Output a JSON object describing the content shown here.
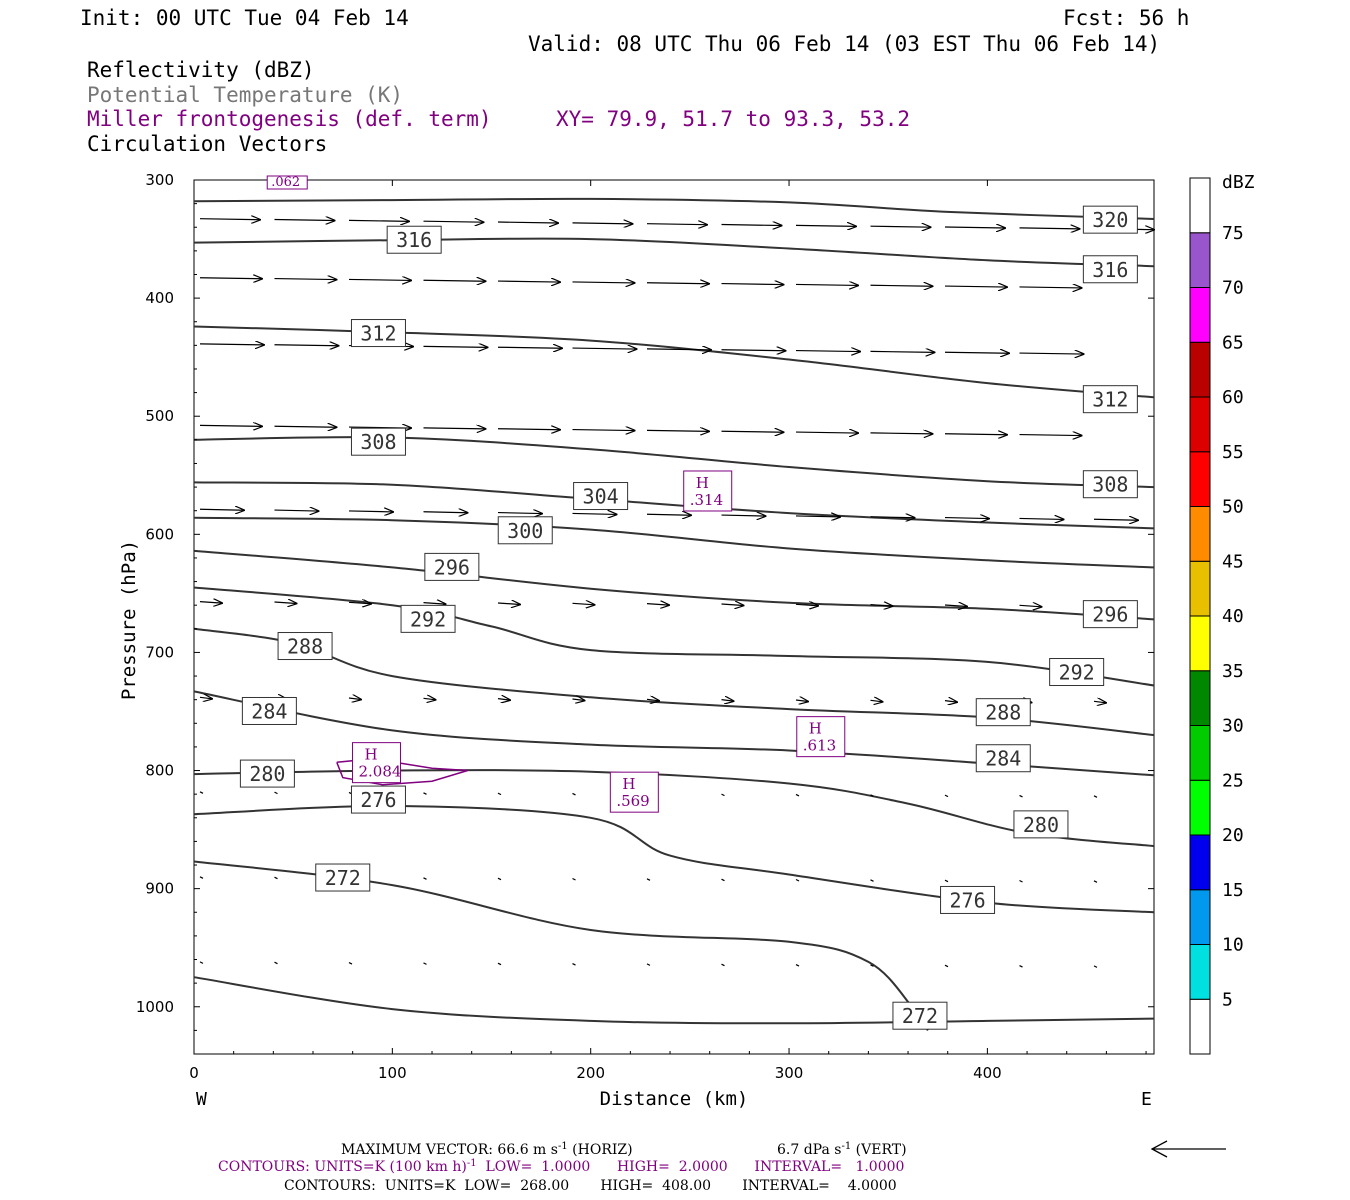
{
  "header": {
    "init": "Init: 00 UTC Tue 04 Feb 14",
    "fcst": "Fcst:   56 h",
    "valid": "Valid: 08 UTC Thu 06 Feb 14 (03 EST Thu 06 Feb 14)",
    "fields": [
      {
        "text": "Reflectivity (dBZ)",
        "color": "#000000"
      },
      {
        "text": "Potential Temperature (K)",
        "color": "#777777"
      },
      {
        "text": "Miller frontogenesis (def. term)",
        "color": "#800080"
      },
      {
        "text": "Circulation Vectors",
        "color": "#000000"
      }
    ],
    "xy": "XY=  79.9, 51.7 to  93.3, 53.2"
  },
  "axes": {
    "xlabel": "Distance (km)",
    "ylabel": "Pressure (hPa)",
    "west": "W",
    "east": "E"
  },
  "colorbar": {
    "unit": "dBZ",
    "levels": [
      5,
      10,
      15,
      20,
      25,
      30,
      35,
      40,
      45,
      50,
      55,
      60,
      65,
      70,
      75
    ],
    "colors": [
      "#00e0e0",
      "#0099ee",
      "#0000ee",
      "#00ff00",
      "#00cc00",
      "#008800",
      "#ffff00",
      "#e8c000",
      "#ff8c00",
      "#ff0000",
      "#dd0000",
      "#bb0000",
      "#ff00ff",
      "#9955cc",
      "#ffffff"
    ]
  },
  "footer": {
    "max_vector_left": "MAXIMUM VECTOR:  66.6 m s",
    "max_vector_left_sup": "-1",
    "max_vector_left_tail": " (HORIZ)",
    "max_vector_right": "6.7 dPa s",
    "max_vector_right_sup": "-1",
    "max_vector_right_tail": " (VERT)",
    "contours_purple": "CONTOURS:  UNITS=K (100 km h)",
    "contours_purple_sup": "-1",
    "contours_purple_tail": "  LOW=  1.0000      HIGH=  2.0000      INTERVAL=   1.0000",
    "contours_black": "CONTOURS:  UNITS=K  LOW=  268.00       HIGH=  408.00       INTERVAL=    4.0000"
  },
  "chart_data": {
    "type": "cross-section",
    "x_unit": "km",
    "y_unit": "hPa",
    "xlim": [
      0,
      484
    ],
    "ylim": [
      1040,
      300
    ],
    "x_ticks": [
      0,
      100,
      200,
      300,
      400
    ],
    "y_ticks": [
      300,
      400,
      500,
      600,
      700,
      800,
      900,
      1000
    ],
    "theta_contours": [
      {
        "value": 320,
        "points": [
          [
            0,
            318
          ],
          [
            100,
            317
          ],
          [
            200,
            316
          ],
          [
            300,
            319
          ],
          [
            380,
            327
          ],
          [
            484,
            333
          ]
        ],
        "labels": [
          [
            462,
            334
          ]
        ]
      },
      {
        "value": 316,
        "points": [
          [
            0,
            353
          ],
          [
            100,
            351
          ],
          [
            200,
            350
          ],
          [
            300,
            358
          ],
          [
            400,
            368
          ],
          [
            484,
            373
          ]
        ],
        "labels": [
          [
            111,
            351
          ],
          [
            462,
            376
          ]
        ]
      },
      {
        "value": 312,
        "points": [
          [
            0,
            424
          ],
          [
            100,
            429
          ],
          [
            200,
            436
          ],
          [
            300,
            452
          ],
          [
            400,
            472
          ],
          [
            484,
            484
          ]
        ],
        "labels": [
          [
            93,
            430
          ],
          [
            462,
            486
          ]
        ]
      },
      {
        "value": 308,
        "points": [
          [
            0,
            520
          ],
          [
            100,
            518
          ],
          [
            200,
            528
          ],
          [
            300,
            543
          ],
          [
            400,
            555
          ],
          [
            484,
            560
          ]
        ],
        "labels": [
          [
            93,
            522
          ],
          [
            462,
            558
          ]
        ]
      },
      {
        "value": 304,
        "points": [
          [
            0,
            556
          ],
          [
            100,
            558
          ],
          [
            200,
            570
          ],
          [
            300,
            582
          ],
          [
            400,
            590
          ],
          [
            484,
            595
          ]
        ],
        "labels": [
          [
            205,
            568
          ]
        ]
      },
      {
        "value": 300,
        "points": [
          [
            0,
            586
          ],
          [
            100,
            588
          ],
          [
            200,
            596
          ],
          [
            300,
            612
          ],
          [
            400,
            622
          ],
          [
            484,
            628
          ]
        ],
        "labels": [
          [
            167,
            597
          ]
        ]
      },
      {
        "value": 296,
        "points": [
          [
            0,
            614
          ],
          [
            100,
            628
          ],
          [
            200,
            646
          ],
          [
            300,
            658
          ],
          [
            400,
            663
          ],
          [
            484,
            672
          ]
        ],
        "labels": [
          [
            130,
            628
          ],
          [
            462,
            668
          ]
        ]
      },
      {
        "value": 292,
        "points": [
          [
            0,
            645
          ],
          [
            100,
            660
          ],
          [
            150,
            678
          ],
          [
            200,
            698
          ],
          [
            300,
            703
          ],
          [
            400,
            708
          ],
          [
            484,
            728
          ]
        ],
        "labels": [
          [
            118,
            672
          ],
          [
            445,
            717
          ]
        ]
      },
      {
        "value": 288,
        "points": [
          [
            0,
            680
          ],
          [
            50,
            692
          ],
          [
            100,
            720
          ],
          [
            200,
            738
          ],
          [
            300,
            748
          ],
          [
            400,
            755
          ],
          [
            484,
            770
          ]
        ],
        "labels": [
          [
            56,
            695
          ],
          [
            408,
            751
          ]
        ]
      },
      {
        "value": 284,
        "points": [
          [
            0,
            733
          ],
          [
            100,
            766
          ],
          [
            200,
            778
          ],
          [
            300,
            783
          ],
          [
            400,
            794
          ],
          [
            484,
            804
          ]
        ],
        "labels": [
          [
            38,
            750
          ],
          [
            408,
            790
          ]
        ]
      },
      {
        "value": 280,
        "points": [
          [
            0,
            803
          ],
          [
            100,
            800
          ],
          [
            200,
            801
          ],
          [
            300,
            811
          ],
          [
            360,
            828
          ],
          [
            420,
            853
          ],
          [
            484,
            864
          ]
        ],
        "labels": [
          [
            37,
            803
          ],
          [
            427,
            846
          ]
        ]
      },
      {
        "value": 276,
        "points": [
          [
            0,
            837
          ],
          [
            100,
            830
          ],
          [
            200,
            840
          ],
          [
            240,
            872
          ],
          [
            300,
            888
          ],
          [
            400,
            912
          ],
          [
            484,
            920
          ]
        ],
        "labels": [
          [
            93,
            825
          ],
          [
            390,
            910
          ]
        ]
      },
      {
        "value": 272,
        "points": [
          [
            0,
            877
          ],
          [
            100,
            897
          ],
          [
            200,
            935
          ],
          [
            300,
            945
          ],
          [
            340,
            962
          ],
          [
            362,
            1000
          ],
          [
            370,
            1020
          ]
        ],
        "labels": [
          [
            75,
            891
          ],
          [
            366,
            1008
          ]
        ]
      },
      {
        "value": 272,
        "points": [
          [
            0,
            975
          ],
          [
            100,
            1002
          ],
          [
            200,
            1012
          ],
          [
            300,
            1014
          ],
          [
            400,
            1012
          ],
          [
            484,
            1010
          ]
        ],
        "labels": []
      }
    ],
    "frontogenesis_maxima": [
      {
        "label": "H",
        "value": "2.084",
        "x": 92,
        "y": 795
      },
      {
        "label": "H",
        "value": ".569",
        "x": 222,
        "y": 820
      },
      {
        "label": "H",
        "value": ".613",
        "x": 316,
        "y": 773
      },
      {
        "label": "H",
        "value": ".314",
        "x": 259,
        "y": 565
      },
      {
        "label": "",
        "value": ".062",
        "x": 47,
        "y": 300
      }
    ]
  }
}
